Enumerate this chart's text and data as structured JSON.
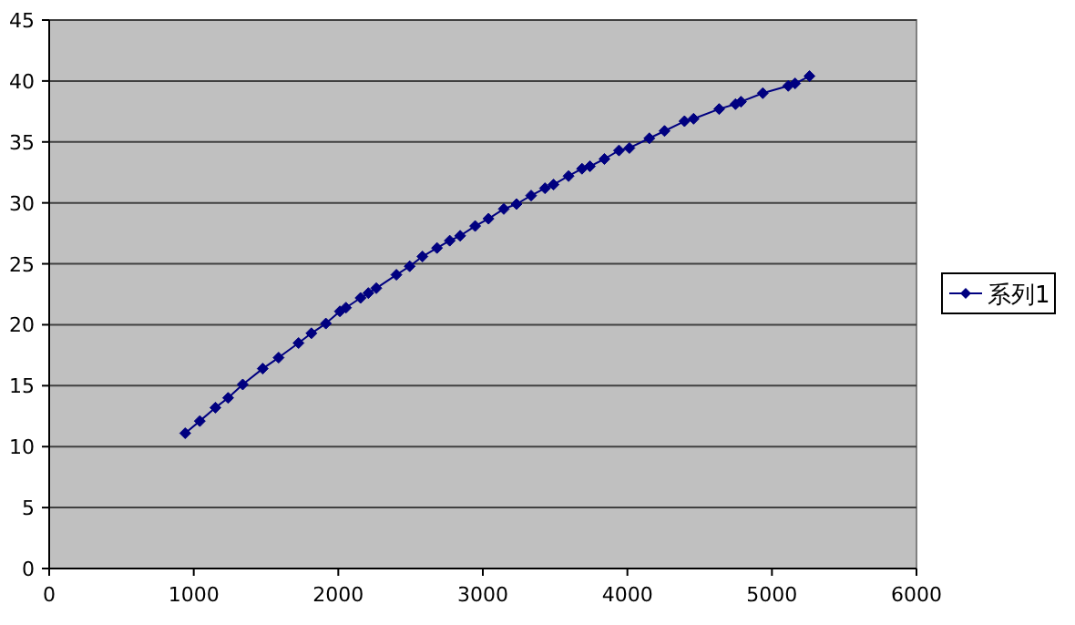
{
  "chart_data": {
    "type": "line",
    "marker": "diamond",
    "line_style": "solid",
    "grid": "y",
    "legend": "right",
    "xlim": [
      0,
      6000
    ],
    "ylim": [
      0,
      45
    ],
    "xticks": [
      0,
      1000,
      2000,
      3000,
      4000,
      5000,
      6000
    ],
    "yticks": [
      0,
      5,
      10,
      15,
      20,
      25,
      30,
      35,
      40,
      45
    ],
    "x": [
      941,
      1042,
      1150,
      1238,
      1339,
      1477,
      1587,
      1725,
      1814,
      1914,
      2011,
      2053,
      2154,
      2208,
      2263,
      2402,
      2494,
      2582,
      2683,
      2771,
      2843,
      2947,
      3039,
      3145,
      3233,
      3334,
      3430,
      3489,
      3593,
      3686,
      3741,
      3841,
      3942,
      4014,
      4152,
      4257,
      4395,
      4458,
      4635,
      4748,
      4786,
      4937,
      5113,
      5160,
      5260
    ],
    "series": [
      {
        "name": "系列1",
        "color": "#000080",
        "values": [
          11.1,
          12.1,
          13.2,
          14.0,
          15.1,
          16.4,
          17.3,
          18.5,
          19.3,
          20.1,
          21.1,
          21.4,
          22.2,
          22.6,
          23.0,
          24.1,
          24.8,
          25.6,
          26.3,
          26.9,
          27.3,
          28.1,
          28.7,
          29.5,
          29.9,
          30.6,
          31.2,
          31.5,
          32.2,
          32.8,
          33.0,
          33.6,
          34.3,
          34.5,
          35.3,
          35.9,
          36.7,
          36.9,
          37.7,
          38.1,
          38.3,
          39.0,
          39.6,
          39.8,
          40.4
        ]
      }
    ]
  }
}
